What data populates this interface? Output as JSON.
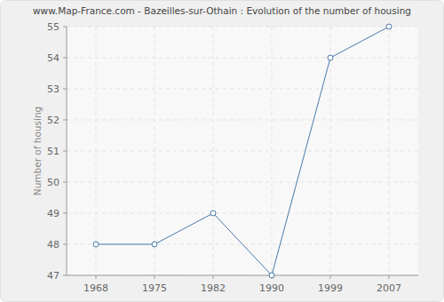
{
  "chart_data": {
    "type": "line",
    "title": "www.Map-France.com - Bazeilles-sur-Othain : Evolution of the number of housing",
    "y_label": "Number of housing",
    "categories": [
      "1968",
      "1975",
      "1982",
      "1990",
      "1999",
      "2007"
    ],
    "values": [
      48,
      48,
      49,
      47,
      54,
      55
    ],
    "color": "#4a78a8",
    "marker": "circle",
    "ylim": [
      47,
      55
    ],
    "yticks": [
      47,
      48,
      49,
      50,
      51,
      52,
      53,
      54,
      55
    ],
    "grid": true
  }
}
